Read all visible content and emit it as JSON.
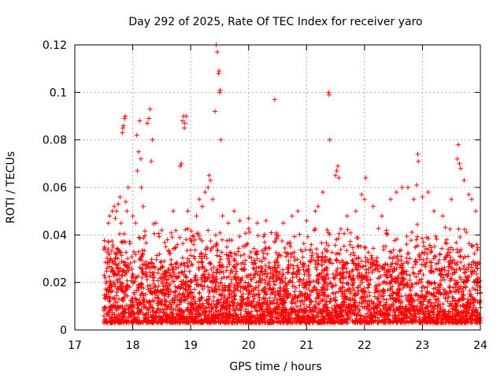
{
  "chart_data": {
    "type": "scatter",
    "title": "Day 292 of 2025, Rate Of TEC Index for receiver yaro",
    "xlabel": "GPS time / hours",
    "ylabel": "ROTI / TECUs",
    "xlim": [
      17,
      24
    ],
    "ylim": [
      0,
      0.12
    ],
    "xticks": [
      "17",
      "18",
      "19",
      "20",
      "21",
      "22",
      "23",
      "24"
    ],
    "yticks": [
      "0",
      "0.02",
      "0.04",
      "0.06",
      "0.08",
      "0.1",
      "0.12"
    ],
    "grid": true,
    "marker": "+",
    "series": [
      {
        "name": "ROTI",
        "color": "#ff0000",
        "points": [
          [
            17.5,
            0.034
          ],
          [
            17.55,
            0.015
          ],
          [
            17.58,
            0.045
          ],
          [
            17.6,
            0.048
          ],
          [
            17.62,
            0.03
          ],
          [
            17.65,
            0.05
          ],
          [
            17.68,
            0.052
          ],
          [
            17.7,
            0.047
          ],
          [
            17.72,
            0.05
          ],
          [
            17.75,
            0.053
          ],
          [
            17.78,
            0.056
          ],
          [
            17.8,
            0.045
          ],
          [
            17.82,
            0.083
          ],
          [
            17.83,
            0.085
          ],
          [
            17.84,
            0.086
          ],
          [
            17.86,
            0.089
          ],
          [
            17.87,
            0.09
          ],
          [
            17.88,
            0.054
          ],
          [
            17.9,
            0.05
          ],
          [
            17.92,
            0.06
          ],
          [
            18.0,
            0.048
          ],
          [
            18.05,
            0.045
          ],
          [
            18.07,
            0.082
          ],
          [
            18.08,
            0.067
          ],
          [
            18.1,
            0.075
          ],
          [
            18.12,
            0.088
          ],
          [
            18.14,
            0.072
          ],
          [
            18.15,
            0.06
          ],
          [
            18.18,
            0.052
          ],
          [
            18.25,
            0.087
          ],
          [
            18.28,
            0.089
          ],
          [
            18.3,
            0.093
          ],
          [
            18.32,
            0.071
          ],
          [
            18.34,
            0.08
          ],
          [
            18.4,
            0.045
          ],
          [
            18.5,
            0.042
          ],
          [
            18.6,
            0.038
          ],
          [
            18.7,
            0.05
          ],
          [
            18.82,
            0.069
          ],
          [
            18.84,
            0.07
          ],
          [
            18.86,
            0.088
          ],
          [
            18.88,
            0.09
          ],
          [
            18.89,
            0.085
          ],
          [
            18.9,
            0.087
          ],
          [
            18.92,
            0.09
          ],
          [
            18.95,
            0.05
          ],
          [
            19.1,
            0.048
          ],
          [
            19.15,
            0.055
          ],
          [
            19.2,
            0.052
          ],
          [
            19.25,
            0.058
          ],
          [
            19.3,
            0.06
          ],
          [
            19.32,
            0.065
          ],
          [
            19.34,
            0.063
          ],
          [
            19.38,
            0.055
          ],
          [
            19.42,
            0.092
          ],
          [
            19.44,
            0.12
          ],
          [
            19.46,
            0.117
          ],
          [
            19.48,
            0.108
          ],
          [
            19.49,
            0.109
          ],
          [
            19.5,
            0.1
          ],
          [
            19.51,
            0.101
          ],
          [
            19.52,
            0.08
          ],
          [
            19.55,
            0.048
          ],
          [
            19.65,
            0.045
          ],
          [
            19.75,
            0.05
          ],
          [
            19.85,
            0.046
          ],
          [
            20.0,
            0.047
          ],
          [
            20.15,
            0.045
          ],
          [
            20.3,
            0.046
          ],
          [
            20.45,
            0.097
          ],
          [
            20.6,
            0.045
          ],
          [
            20.75,
            0.048
          ],
          [
            20.85,
            0.05
          ],
          [
            21.0,
            0.046
          ],
          [
            21.15,
            0.05
          ],
          [
            21.2,
            0.052
          ],
          [
            21.28,
            0.058
          ],
          [
            21.38,
            0.1
          ],
          [
            21.39,
            0.099
          ],
          [
            21.4,
            0.08
          ],
          [
            21.5,
            0.065
          ],
          [
            21.52,
            0.067
          ],
          [
            21.54,
            0.069
          ],
          [
            21.56,
            0.064
          ],
          [
            21.7,
            0.048
          ],
          [
            21.85,
            0.05
          ],
          [
            21.95,
            0.057
          ],
          [
            22.0,
            0.055
          ],
          [
            22.02,
            0.064
          ],
          [
            22.15,
            0.052
          ],
          [
            22.3,
            0.048
          ],
          [
            22.45,
            0.055
          ],
          [
            22.55,
            0.058
          ],
          [
            22.65,
            0.06
          ],
          [
            22.75,
            0.06
          ],
          [
            22.85,
            0.055
          ],
          [
            22.9,
            0.061
          ],
          [
            22.92,
            0.074
          ],
          [
            22.93,
            0.071
          ],
          [
            23.0,
            0.056
          ],
          [
            23.1,
            0.058
          ],
          [
            23.2,
            0.05
          ],
          [
            23.35,
            0.048
          ],
          [
            23.5,
            0.055
          ],
          [
            23.6,
            0.072
          ],
          [
            23.62,
            0.078
          ],
          [
            23.64,
            0.07
          ],
          [
            23.66,
            0.068
          ],
          [
            23.72,
            0.063
          ],
          [
            23.8,
            0.057
          ],
          [
            23.85,
            0.055
          ],
          [
            23.92,
            0.05
          ]
        ],
        "dense_band": {
          "x_range": [
            17.5,
            24.0
          ],
          "y_range": [
            0.003,
            0.045
          ],
          "count": 4200
        }
      }
    ]
  }
}
